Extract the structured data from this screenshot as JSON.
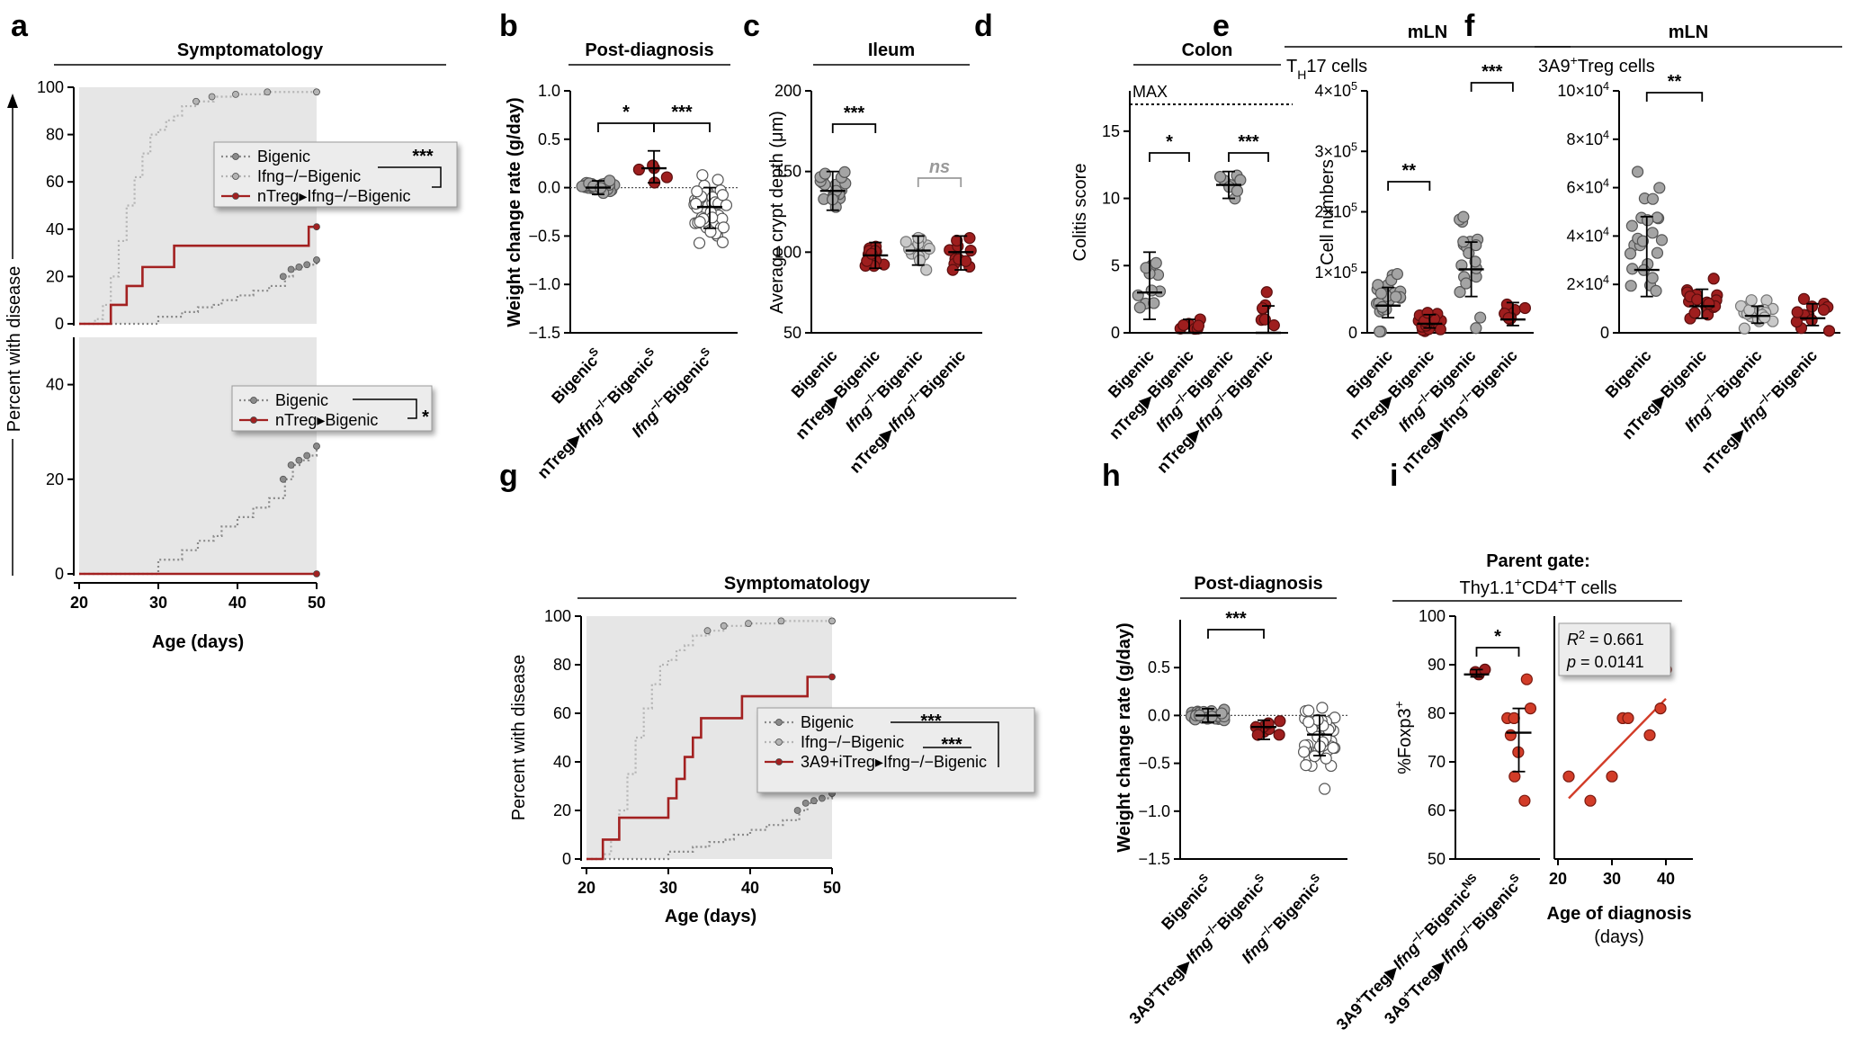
{
  "chart_data": [
    {
      "id": "a_top",
      "panel": "a",
      "type": "line",
      "subtype": "kaplan-meier",
      "title": "Symptomatology",
      "ylabel": "Percent with disease",
      "xlabel": "Age (days)",
      "xlim": [
        20,
        50
      ],
      "ylim": [
        0,
        100
      ],
      "xticks": [
        20,
        30,
        40,
        50
      ],
      "yticks": [
        0,
        20,
        40,
        60,
        80,
        100
      ],
      "shaded_region": [
        20,
        50
      ],
      "legend_placement": "right-center",
      "series": [
        {
          "name": "Bigenic",
          "style": "gray-dotted",
          "color": "#8a8a8a",
          "x": [
            20,
            28,
            30,
            33,
            35,
            37,
            38,
            40,
            42,
            44,
            46,
            47,
            48,
            49,
            50
          ],
          "y": [
            0,
            0,
            3,
            5,
            7,
            8,
            10,
            12,
            14,
            16,
            20,
            23,
            24,
            25,
            27
          ]
        },
        {
          "name": "Ifng−/−Bigenic",
          "style": "light-gray-dotted",
          "color": "#b4b4b4",
          "x": [
            20,
            22,
            23,
            24,
            25,
            26,
            27,
            28,
            29,
            30,
            31,
            32,
            33,
            35,
            37,
            40,
            44,
            50
          ],
          "y": [
            0,
            2,
            8,
            20,
            35,
            50,
            62,
            72,
            80,
            82,
            86,
            88,
            92,
            94,
            96,
            97,
            98,
            98
          ]
        },
        {
          "name": "nTreg▸Ifng−/−Bigenic",
          "style": "red-solid",
          "color": "#a32121",
          "x": [
            20,
            23,
            24,
            26,
            27,
            28,
            29,
            30,
            32,
            35,
            38,
            42,
            46,
            48,
            49,
            50
          ],
          "y": [
            0,
            0,
            8,
            16,
            16,
            24,
            24,
            24,
            33,
            33,
            33,
            33,
            33,
            33,
            41,
            41
          ]
        }
      ],
      "annotations": [
        "***"
      ]
    },
    {
      "id": "a_bottom",
      "panel": "a",
      "type": "line",
      "subtype": "kaplan-meier",
      "xlim": [
        20,
        50
      ],
      "ylim": [
        0,
        50
      ],
      "xticks": [
        20,
        30,
        40,
        50
      ],
      "yticks": [
        0,
        20,
        40
      ],
      "shaded_region": [
        20,
        50
      ],
      "legend_placement": "top-right",
      "series": [
        {
          "name": "Bigenic",
          "style": "gray-dotted",
          "color": "#8a8a8a",
          "x": [
            20,
            28,
            30,
            33,
            35,
            37,
            38,
            40,
            42,
            44,
            46,
            47,
            48,
            49,
            50
          ],
          "y": [
            0,
            0,
            3,
            5,
            7,
            8,
            10,
            12,
            14,
            16,
            20,
            23,
            24,
            25,
            27
          ]
        },
        {
          "name": "nTreg▸Bigenic",
          "style": "red-solid",
          "color": "#a32121",
          "x": [
            20,
            50
          ],
          "y": [
            0,
            0
          ]
        }
      ],
      "annotations": [
        "*"
      ]
    },
    {
      "id": "b",
      "panel": "b",
      "type": "scatter",
      "subtype": "dot-plot",
      "title": "Post-diagnosis",
      "ylabel": "Weight change rate (g/day)",
      "ylim": [
        -1.5,
        1.0
      ],
      "yticks": [
        -1.5,
        -1.0,
        -0.5,
        0.0,
        0.5,
        1.0
      ],
      "dotted_reference_y": 0,
      "categories": [
        "Bigenic S",
        "nTreg▸Ifng−/−Bigenic S",
        "Ifng−/−Bigenic S"
      ],
      "median": [
        0.0,
        0.2,
        -0.2
      ],
      "error_bar": [
        [
          -0.07,
          0.07
        ],
        [
          0.05,
          0.38
        ],
        [
          -0.42,
          0.0
        ]
      ],
      "group_stats": [
        {
          "n": 38,
          "mean": 0.0,
          "sd": 0.05
        },
        {
          "n": 5,
          "mean": 0.18,
          "sd": 0.15
        },
        {
          "n": 42,
          "mean": -0.25,
          "sd": 0.27
        }
      ],
      "significance": [
        {
          "pair": [
            0,
            1
          ],
          "label": "*"
        },
        {
          "pair": [
            1,
            2
          ],
          "label": "***"
        }
      ]
    },
    {
      "id": "c",
      "panel": "c",
      "type": "scatter",
      "subtype": "dot-plot",
      "title": "Ileum",
      "ylabel": "Average crypt depth (μm)",
      "ylim": [
        50,
        200
      ],
      "yticks": [
        50,
        100,
        150,
        200
      ],
      "categories": [
        "Bigenic",
        "nTreg▸Bigenic",
        "Ifng−/−Bigenic",
        "nTreg▸Ifng−/−Bigenic"
      ],
      "median": [
        138,
        98,
        101,
        100
      ],
      "error_bar": [
        [
          126,
          150
        ],
        [
          90,
          106
        ],
        [
          92,
          110
        ],
        [
          89,
          110
        ]
      ],
      "group_stats": [
        {
          "n": 20,
          "mean": 138,
          "sd": 13
        },
        {
          "n": 12,
          "mean": 99,
          "sd": 10
        },
        {
          "n": 14,
          "mean": 101,
          "sd": 10
        },
        {
          "n": 11,
          "mean": 100,
          "sd": 13
        }
      ],
      "significance": [
        {
          "pair": [
            0,
            1
          ],
          "label": "***"
        },
        {
          "pair": [
            2,
            3
          ],
          "label": "ns"
        }
      ]
    },
    {
      "id": "d",
      "panel": "d",
      "type": "scatter",
      "subtype": "dot-plot",
      "title": "Colon",
      "ylabel": "Colitis score",
      "ylim": [
        0,
        18
      ],
      "yticks": [
        0,
        5,
        10,
        15
      ],
      "reference_lines": [
        {
          "y": 17,
          "label": "MAX"
        }
      ],
      "categories": [
        "Bigenic",
        "nTreg▸Bigenic",
        "Ifng−/−Bigenic",
        "nTreg▸Ifng−/−Bigenic"
      ],
      "median": [
        3,
        0,
        11,
        0
      ],
      "error_bar": [
        [
          1,
          6
        ],
        [
          0,
          1
        ],
        [
          10,
          12
        ],
        [
          0,
          2
        ]
      ],
      "group_stats": [
        {
          "n": 11,
          "mean": 3.5,
          "sd": 3.5
        },
        {
          "n": 7,
          "mean": 0.5,
          "sd": 0.6
        },
        {
          "n": 8,
          "mean": 11,
          "sd": 0.9
        },
        {
          "n": 7,
          "mean": 1.0,
          "sd": 1.8
        }
      ],
      "significance": [
        {
          "pair": [
            0,
            1
          ],
          "label": "*"
        },
        {
          "pair": [
            2,
            3
          ],
          "label": "***"
        }
      ]
    },
    {
      "id": "e",
      "panel": "e",
      "type": "scatter",
      "subtype": "dot-plot",
      "title": "mLN",
      "subtitle": "TH17 cells",
      "ylabel": "Cell numbers",
      "ylim": [
        0,
        400000
      ],
      "yticks": [
        0,
        100000,
        200000,
        300000,
        400000
      ],
      "categories": [
        "Bigenic",
        "nTreg▸Bigenic",
        "Ifng−/−Bigenic",
        "nTreg▸Ifng−/−Bigenic"
      ],
      "median": [
        45000,
        15000,
        105000,
        22000
      ],
      "error_bar": [
        [
          25000,
          75000
        ],
        [
          8000,
          30000
        ],
        [
          60000,
          150000
        ],
        [
          12000,
          50000
        ]
      ],
      "group_stats": [
        {
          "n": 25,
          "mean": 55000,
          "sd": 32000
        },
        {
          "n": 22,
          "mean": 20000,
          "sd": 14000
        },
        {
          "n": 19,
          "mean": 130000,
          "sd": 85000
        },
        {
          "n": 10,
          "mean": 28000,
          "sd": 15000
        }
      ],
      "significance": [
        {
          "pair": [
            0,
            1
          ],
          "label": "**"
        },
        {
          "pair": [
            2,
            3
          ],
          "label": "***"
        }
      ]
    },
    {
      "id": "f",
      "panel": "f",
      "type": "scatter",
      "subtype": "dot-plot",
      "title": "mLN",
      "subtitle": "3A9+Treg cells",
      "ylabel": "",
      "ylim": [
        0,
        100000
      ],
      "yticks": [
        0,
        20000,
        40000,
        60000,
        80000,
        100000
      ],
      "categories": [
        "Bigenic",
        "nTreg▸Bigenic",
        "Ifng−/−Bigenic",
        "nTreg▸Ifng−/−Bigenic"
      ],
      "median": [
        26000,
        11000,
        7000,
        6000
      ],
      "error_bar": [
        [
          15000,
          48000
        ],
        [
          6000,
          18000
        ],
        [
          4000,
          11000
        ],
        [
          3000,
          12000
        ]
      ],
      "group_stats": [
        {
          "n": 24,
          "mean": 34000,
          "sd": 22000
        },
        {
          "n": 18,
          "mean": 12000,
          "sd": 7000
        },
        {
          "n": 22,
          "mean": 8000,
          "sd": 5000
        },
        {
          "n": 12,
          "mean": 8000,
          "sd": 6000
        }
      ],
      "significance": [
        {
          "pair": [
            0,
            1
          ],
          "label": "**"
        }
      ]
    },
    {
      "id": "g",
      "panel": "g",
      "type": "line",
      "subtype": "kaplan-meier",
      "title": "Symptomatology",
      "ylabel": "Percent with disease",
      "xlabel": "Age (days)",
      "xlim": [
        20,
        50
      ],
      "ylim": [
        0,
        100
      ],
      "xticks": [
        20,
        30,
        40,
        50
      ],
      "yticks": [
        0,
        20,
        40,
        60,
        80,
        100
      ],
      "shaded_region": [
        20,
        50
      ],
      "legend_placement": "right-center",
      "series": [
        {
          "name": "Bigenic",
          "style": "gray-dotted",
          "color": "#8a8a8a",
          "x": [
            20,
            28,
            30,
            33,
            35,
            37,
            38,
            40,
            42,
            44,
            46,
            47,
            48,
            49,
            50
          ],
          "y": [
            0,
            0,
            3,
            5,
            7,
            8,
            10,
            12,
            14,
            16,
            20,
            23,
            24,
            25,
            27
          ]
        },
        {
          "name": "Ifng−/−Bigenic",
          "style": "light-gray-dotted",
          "color": "#b4b4b4",
          "x": [
            20,
            22,
            23,
            24,
            25,
            26,
            27,
            28,
            29,
            30,
            31,
            32,
            33,
            35,
            37,
            40,
            44,
            50
          ],
          "y": [
            0,
            2,
            8,
            20,
            35,
            50,
            62,
            72,
            80,
            82,
            86,
            88,
            92,
            94,
            96,
            97,
            98,
            98
          ]
        },
        {
          "name": "3A9+iTreg▸Ifng−/−Bigenic",
          "style": "red-solid",
          "color": "#a32121",
          "x": [
            20,
            21,
            22,
            24,
            29,
            30,
            31,
            32,
            33,
            34,
            38,
            39,
            40,
            41,
            43,
            47,
            48,
            50
          ],
          "y": [
            0,
            0,
            8,
            17,
            17,
            25,
            33,
            42,
            50,
            58,
            58,
            67,
            67,
            67,
            67,
            75,
            75,
            75
          ]
        }
      ],
      "annotations": [
        "***",
        "***"
      ]
    },
    {
      "id": "h",
      "panel": "h",
      "type": "scatter",
      "subtype": "dot-plot",
      "title": "Post-diagnosis",
      "ylabel": "Weight change rate (g/day)",
      "ylim": [
        -1.5,
        1.0
      ],
      "yticks": [
        -1.5,
        -1.0,
        -0.5,
        0.0,
        0.5
      ],
      "dotted_reference_y": 0,
      "categories": [
        "Bigenic S",
        "3A9+Treg▸Ifng−/−Bigenic S",
        "Ifng−/−Bigenic S"
      ],
      "median": [
        0.0,
        -0.12,
        -0.2
      ],
      "error_bar": [
        [
          -0.07,
          0.07
        ],
        [
          -0.25,
          -0.05
        ],
        [
          -0.42,
          0.0
        ]
      ],
      "group_stats": [
        {
          "n": 38,
          "mean": 0.0,
          "sd": 0.05
        },
        {
          "n": 8,
          "mean": -0.14,
          "sd": 0.08
        },
        {
          "n": 42,
          "mean": -0.25,
          "sd": 0.27
        }
      ],
      "significance": [
        {
          "pair": [
            0,
            1
          ],
          "label": "***"
        }
      ]
    },
    {
      "id": "i_left",
      "panel": "i",
      "type": "scatter",
      "subtype": "dot-plot",
      "title": "Parent gate:",
      "subtitle": "Thy1.1+CD4+T cells",
      "ylabel": "%Foxp3+",
      "ylim": [
        50,
        100
      ],
      "yticks": [
        50,
        60,
        70,
        80,
        90,
        100
      ],
      "categories": [
        "3A9+Treg▸Ifng−/−Bigenic NS",
        "3A9+Treg▸Ifng−/−Bigenic S"
      ],
      "median": [
        88,
        76
      ],
      "error_bar": [
        [
          87.5,
          89
        ],
        [
          68,
          81
        ]
      ],
      "points": [
        [
          88,
          88.5,
          89
        ],
        [
          87,
          81,
          79,
          79,
          75.5,
          72,
          67,
          62
        ]
      ],
      "significance": [
        {
          "pair": [
            0,
            1
          ],
          "label": "*"
        }
      ]
    },
    {
      "id": "i_right",
      "panel": "i",
      "type": "scatter",
      "xlabel": "Age of diagnosis (days)",
      "xlim": [
        20,
        45
      ],
      "ylim": [
        50,
        100
      ],
      "xticks": [
        20,
        30,
        40
      ],
      "x": [
        22,
        26,
        30,
        32,
        33,
        37,
        39,
        40
      ],
      "y": [
        67,
        62,
        67,
        79,
        79,
        75.5,
        81,
        89
      ],
      "fit_line": {
        "x": [
          22,
          40
        ],
        "y": [
          62.5,
          83
        ]
      },
      "stats": {
        "R2": "0.661",
        "p": "0.0141"
      }
    }
  ]
}
